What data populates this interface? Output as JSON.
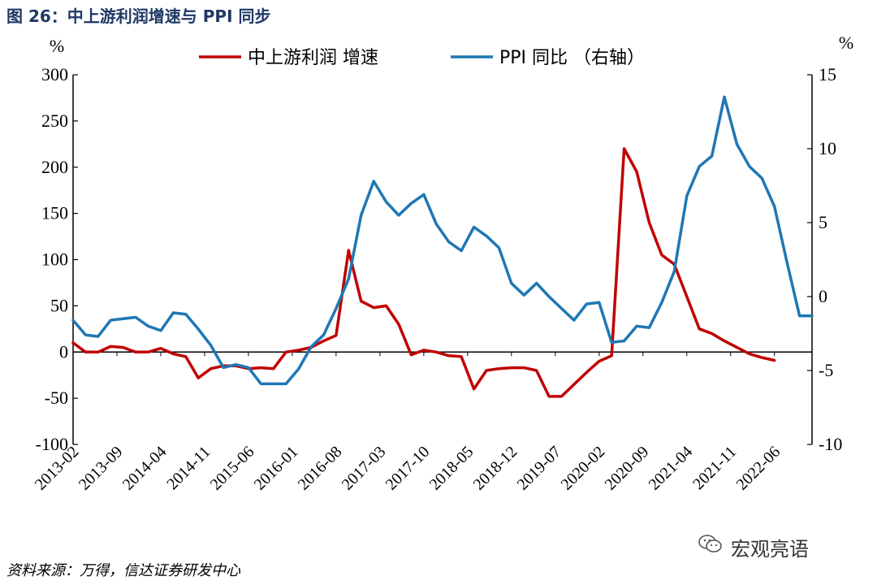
{
  "title": "图 26：中上游利润增速与 PPI 同步",
  "source": "资料来源：万得，信达证券研发中心",
  "watermark": "宏观亮语",
  "chart_data": {
    "type": "line",
    "left_axis": {
      "unit": "%",
      "min": -100,
      "max": 300,
      "ticks": [
        300,
        250,
        200,
        150,
        100,
        50,
        0,
        -50,
        -100
      ]
    },
    "right_axis": {
      "unit": "%",
      "min": -10,
      "max": 15,
      "ticks": [
        15,
        10,
        5,
        0,
        -5,
        -10
      ]
    },
    "x_ticks": [
      "2013-02",
      "2013-09",
      "2014-04",
      "2014-11",
      "2015-06",
      "2016-01",
      "2016-08",
      "2017-03",
      "2017-10",
      "2018-05",
      "2018-12",
      "2019-07",
      "2020-02",
      "2020-09",
      "2021-04",
      "2021-11",
      "2022-06"
    ],
    "x_range": {
      "start": "2013-02",
      "end": "2022-12"
    },
    "legend_position": "top",
    "series": [
      {
        "name": "中上游利润 增速",
        "axis": "left",
        "color": "#c00000",
        "points": [
          [
            "2013-02",
            10
          ],
          [
            "2013-04",
            0
          ],
          [
            "2013-06",
            0
          ],
          [
            "2013-08",
            6
          ],
          [
            "2013-10",
            5
          ],
          [
            "2013-12",
            0
          ],
          [
            "2014-02",
            0
          ],
          [
            "2014-04",
            4
          ],
          [
            "2014-06",
            -2
          ],
          [
            "2014-08",
            -5
          ],
          [
            "2014-10",
            -28
          ],
          [
            "2014-12",
            -18
          ],
          [
            "2015-02",
            -15
          ],
          [
            "2015-04",
            -15
          ],
          [
            "2015-06",
            -18
          ],
          [
            "2015-08",
            -17
          ],
          [
            "2015-10",
            -18
          ],
          [
            "2015-12",
            0
          ],
          [
            "2016-02",
            2
          ],
          [
            "2016-04",
            5
          ],
          [
            "2016-06",
            12
          ],
          [
            "2016-08",
            18
          ],
          [
            "2016-10",
            110
          ],
          [
            "2016-12",
            55
          ],
          [
            "2017-02",
            48
          ],
          [
            "2017-04",
            50
          ],
          [
            "2017-06",
            30
          ],
          [
            "2017-08",
            -3
          ],
          [
            "2017-10",
            2
          ],
          [
            "2017-12",
            0
          ],
          [
            "2018-02",
            -4
          ],
          [
            "2018-04",
            -5
          ],
          [
            "2018-06",
            -40
          ],
          [
            "2018-08",
            -20
          ],
          [
            "2018-10",
            -18
          ],
          [
            "2018-12",
            -17
          ],
          [
            "2019-02",
            -17
          ],
          [
            "2019-04",
            -20
          ],
          [
            "2019-06",
            -48
          ],
          [
            "2019-08",
            -48
          ],
          [
            "2019-10",
            -35
          ],
          [
            "2019-12",
            -22
          ],
          [
            "2020-02",
            -10
          ],
          [
            "2020-04",
            -4
          ],
          [
            "2020-06",
            220
          ],
          [
            "2020-08",
            195
          ],
          [
            "2020-10",
            140
          ],
          [
            "2020-12",
            105
          ],
          [
            "2021-02",
            95
          ],
          [
            "2021-04",
            60
          ],
          [
            "2021-06",
            25
          ],
          [
            "2021-08",
            20
          ],
          [
            "2021-10",
            12
          ],
          [
            "2021-12",
            5
          ],
          [
            "2022-02",
            -2
          ],
          [
            "2022-04",
            -6
          ],
          [
            "2022-06",
            -9
          ]
        ]
      },
      {
        "name": "PPI 同比 （右轴）",
        "axis": "right",
        "color": "#1f77b4",
        "points": [
          [
            "2013-02",
            -1.6
          ],
          [
            "2013-04",
            -2.6
          ],
          [
            "2013-06",
            -2.7
          ],
          [
            "2013-08",
            -1.6
          ],
          [
            "2013-10",
            -1.5
          ],
          [
            "2013-12",
            -1.4
          ],
          [
            "2014-02",
            -2.0
          ],
          [
            "2014-04",
            -2.3
          ],
          [
            "2014-06",
            -1.1
          ],
          [
            "2014-08",
            -1.2
          ],
          [
            "2014-10",
            -2.2
          ],
          [
            "2014-12",
            -3.3
          ],
          [
            "2015-02",
            -4.8
          ],
          [
            "2015-04",
            -4.6
          ],
          [
            "2015-06",
            -4.8
          ],
          [
            "2015-08",
            -5.9
          ],
          [
            "2015-10",
            -5.9
          ],
          [
            "2015-12",
            -5.9
          ],
          [
            "2016-02",
            -4.9
          ],
          [
            "2016-04",
            -3.4
          ],
          [
            "2016-06",
            -2.6
          ],
          [
            "2016-08",
            -0.8
          ],
          [
            "2016-10",
            1.2
          ],
          [
            "2016-12",
            5.5
          ],
          [
            "2017-02",
            7.8
          ],
          [
            "2017-04",
            6.4
          ],
          [
            "2017-06",
            5.5
          ],
          [
            "2017-08",
            6.3
          ],
          [
            "2017-10",
            6.9
          ],
          [
            "2017-12",
            4.9
          ],
          [
            "2018-02",
            3.7
          ],
          [
            "2018-04",
            3.1
          ],
          [
            "2018-06",
            4.7
          ],
          [
            "2018-08",
            4.1
          ],
          [
            "2018-10",
            3.3
          ],
          [
            "2018-12",
            0.9
          ],
          [
            "2019-02",
            0.1
          ],
          [
            "2019-04",
            0.9
          ],
          [
            "2019-06",
            0.0
          ],
          [
            "2019-08",
            -0.8
          ],
          [
            "2019-10",
            -1.6
          ],
          [
            "2019-12",
            -0.5
          ],
          [
            "2020-02",
            -0.4
          ],
          [
            "2020-04",
            -3.1
          ],
          [
            "2020-06",
            -3.0
          ],
          [
            "2020-08",
            -2.0
          ],
          [
            "2020-10",
            -2.1
          ],
          [
            "2020-12",
            -0.4
          ],
          [
            "2021-02",
            1.7
          ],
          [
            "2021-04",
            6.8
          ],
          [
            "2021-06",
            8.8
          ],
          [
            "2021-08",
            9.5
          ],
          [
            "2021-10",
            13.5
          ],
          [
            "2021-12",
            10.3
          ],
          [
            "2022-02",
            8.8
          ],
          [
            "2022-04",
            8.0
          ],
          [
            "2022-06",
            6.1
          ],
          [
            "2022-08",
            2.3
          ],
          [
            "2022-10",
            -1.3
          ],
          [
            "2022-12",
            -1.3
          ]
        ]
      }
    ]
  }
}
